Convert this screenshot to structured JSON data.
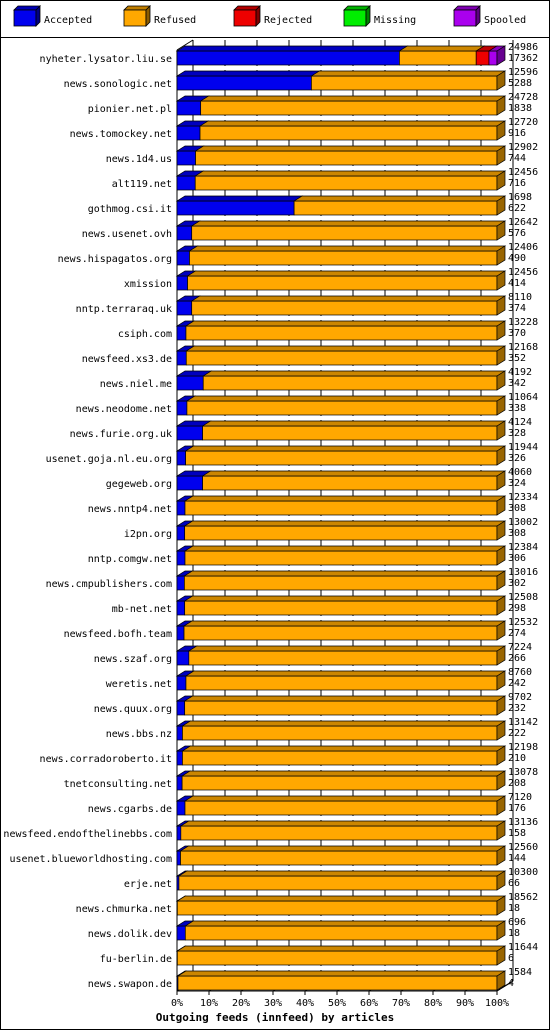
{
  "colors": {
    "accepted": "#0000ee",
    "refused": "#ffa800",
    "rejected": "#ee0000",
    "missing": "#00ee00",
    "spooled": "#aa00ee",
    "outline": "#000000"
  },
  "chart_data": {
    "type": "bar",
    "orientation": "horizontal",
    "stacked": true,
    "xlabel": "Outgoing feeds (innfeed) by articles",
    "ticks": [
      "0%",
      "10%",
      "20%",
      "30%",
      "40%",
      "50%",
      "60%",
      "70%",
      "80%",
      "90%",
      "100%"
    ],
    "xlim": [
      0,
      100
    ],
    "grid": true,
    "legend": [
      {
        "key": "accepted",
        "label": "Accepted"
      },
      {
        "key": "refused",
        "label": "Refused"
      },
      {
        "key": "rejected",
        "label": "Rejected"
      },
      {
        "key": "missing",
        "label": "Missing"
      },
      {
        "key": "spooled",
        "label": "Spooled"
      }
    ],
    "legend_position": "top",
    "rows": [
      {
        "name": "nyheter.lysator.liu.se",
        "total": "24986",
        "second": "17362",
        "accepted": 69.5,
        "refused": 24.0,
        "rejected": 4.0,
        "missing": 0,
        "spooled": 2.5
      },
      {
        "name": "news.sonologic.net",
        "total": "12596",
        "second": "5288",
        "accepted": 42.0,
        "refused": 58.0,
        "rejected": 0,
        "missing": 0,
        "spooled": 0
      },
      {
        "name": "pionier.net.pl",
        "total": "24728",
        "second": "1838",
        "accepted": 7.4,
        "refused": 92.6,
        "rejected": 0,
        "missing": 0,
        "spooled": 0
      },
      {
        "name": "news.tomockey.net",
        "total": "12720",
        "second": "916",
        "accepted": 7.2,
        "refused": 92.8,
        "rejected": 0,
        "missing": 0,
        "spooled": 0
      },
      {
        "name": "news.1d4.us",
        "total": "12902",
        "second": "744",
        "accepted": 5.8,
        "refused": 94.2,
        "rejected": 0,
        "missing": 0,
        "spooled": 0
      },
      {
        "name": "alt119.net",
        "total": "12456",
        "second": "716",
        "accepted": 5.7,
        "refused": 94.3,
        "rejected": 0,
        "missing": 0,
        "spooled": 0
      },
      {
        "name": "gothmog.csi.it",
        "total": "1698",
        "second": "622",
        "accepted": 36.6,
        "refused": 63.4,
        "rejected": 0,
        "missing": 0,
        "spooled": 0
      },
      {
        "name": "news.usenet.ovh",
        "total": "12642",
        "second": "576",
        "accepted": 4.6,
        "refused": 95.4,
        "rejected": 0,
        "missing": 0,
        "spooled": 0
      },
      {
        "name": "news.hispagatos.org",
        "total": "12406",
        "second": "490",
        "accepted": 3.9,
        "refused": 96.1,
        "rejected": 0,
        "missing": 0,
        "spooled": 0
      },
      {
        "name": "xmission",
        "total": "12456",
        "second": "414",
        "accepted": 3.3,
        "refused": 96.7,
        "rejected": 0,
        "missing": 0,
        "spooled": 0
      },
      {
        "name": "nntp.terraraq.uk",
        "total": "8110",
        "second": "374",
        "accepted": 4.6,
        "refused": 95.4,
        "rejected": 0,
        "missing": 0,
        "spooled": 0
      },
      {
        "name": "csiph.com",
        "total": "13228",
        "second": "370",
        "accepted": 2.8,
        "refused": 97.2,
        "rejected": 0,
        "missing": 0,
        "spooled": 0
      },
      {
        "name": "newsfeed.xs3.de",
        "total": "12168",
        "second": "352",
        "accepted": 2.9,
        "refused": 97.1,
        "rejected": 0,
        "missing": 0,
        "spooled": 0
      },
      {
        "name": "news.niel.me",
        "total": "4192",
        "second": "342",
        "accepted": 8.2,
        "refused": 91.8,
        "rejected": 0,
        "missing": 0,
        "spooled": 0
      },
      {
        "name": "news.neodome.net",
        "total": "11064",
        "second": "338",
        "accepted": 3.1,
        "refused": 96.9,
        "rejected": 0,
        "missing": 0,
        "spooled": 0
      },
      {
        "name": "news.furie.org.uk",
        "total": "4124",
        "second": "328",
        "accepted": 8.0,
        "refused": 92.0,
        "rejected": 0,
        "missing": 0,
        "spooled": 0
      },
      {
        "name": "usenet.goja.nl.eu.org",
        "total": "11944",
        "second": "326",
        "accepted": 2.7,
        "refused": 97.3,
        "rejected": 0,
        "missing": 0,
        "spooled": 0
      },
      {
        "name": "gegeweb.org",
        "total": "4060",
        "second": "324",
        "accepted": 8.0,
        "refused": 92.0,
        "rejected": 0,
        "missing": 0,
        "spooled": 0
      },
      {
        "name": "news.nntp4.net",
        "total": "12334",
        "second": "308",
        "accepted": 2.5,
        "refused": 97.5,
        "rejected": 0,
        "missing": 0,
        "spooled": 0
      },
      {
        "name": "i2pn.org",
        "total": "13002",
        "second": "308",
        "accepted": 2.4,
        "refused": 97.6,
        "rejected": 0,
        "missing": 0,
        "spooled": 0
      },
      {
        "name": "nntp.comgw.net",
        "total": "12384",
        "second": "306",
        "accepted": 2.5,
        "refused": 97.5,
        "rejected": 0,
        "missing": 0,
        "spooled": 0
      },
      {
        "name": "news.cmpublishers.com",
        "total": "13016",
        "second": "302",
        "accepted": 2.3,
        "refused": 97.7,
        "rejected": 0,
        "missing": 0,
        "spooled": 0
      },
      {
        "name": "mb-net.net",
        "total": "12508",
        "second": "298",
        "accepted": 2.4,
        "refused": 97.6,
        "rejected": 0,
        "missing": 0,
        "spooled": 0
      },
      {
        "name": "newsfeed.bofh.team",
        "total": "12532",
        "second": "274",
        "accepted": 2.2,
        "refused": 97.8,
        "rejected": 0,
        "missing": 0,
        "spooled": 0
      },
      {
        "name": "news.szaf.org",
        "total": "7224",
        "second": "266",
        "accepted": 3.7,
        "refused": 96.3,
        "rejected": 0,
        "missing": 0,
        "spooled": 0
      },
      {
        "name": "weretis.net",
        "total": "8760",
        "second": "242",
        "accepted": 2.8,
        "refused": 97.2,
        "rejected": 0,
        "missing": 0,
        "spooled": 0
      },
      {
        "name": "news.quux.org",
        "total": "9702",
        "second": "232",
        "accepted": 2.4,
        "refused": 97.6,
        "rejected": 0,
        "missing": 0,
        "spooled": 0
      },
      {
        "name": "news.bbs.nz",
        "total": "13142",
        "second": "222",
        "accepted": 1.7,
        "refused": 98.3,
        "rejected": 0,
        "missing": 0,
        "spooled": 0
      },
      {
        "name": "news.corradoroberto.it",
        "total": "12198",
        "second": "210",
        "accepted": 1.7,
        "refused": 98.3,
        "rejected": 0,
        "missing": 0,
        "spooled": 0
      },
      {
        "name": "tnetconsulting.net",
        "total": "13078",
        "second": "208",
        "accepted": 1.6,
        "refused": 98.4,
        "rejected": 0,
        "missing": 0,
        "spooled": 0
      },
      {
        "name": "news.cgarbs.de",
        "total": "7120",
        "second": "176",
        "accepted": 2.5,
        "refused": 97.5,
        "rejected": 0,
        "missing": 0,
        "spooled": 0
      },
      {
        "name": "newsfeed.endofthelinebbs.com",
        "total": "13136",
        "second": "158",
        "accepted": 1.2,
        "refused": 98.8,
        "rejected": 0,
        "missing": 0,
        "spooled": 0
      },
      {
        "name": "usenet.blueworldhosting.com",
        "total": "12560",
        "second": "144",
        "accepted": 1.1,
        "refused": 98.9,
        "rejected": 0,
        "missing": 0,
        "spooled": 0
      },
      {
        "name": "erje.net",
        "total": "10300",
        "second": "66",
        "accepted": 0.6,
        "refused": 99.4,
        "rejected": 0,
        "missing": 0,
        "spooled": 0
      },
      {
        "name": "news.chmurka.net",
        "total": "18562",
        "second": "18",
        "accepted": 0.1,
        "refused": 99.9,
        "rejected": 0,
        "missing": 0,
        "spooled": 0
      },
      {
        "name": "news.dolik.dev",
        "total": "696",
        "second": "18",
        "accepted": 2.6,
        "refused": 97.4,
        "rejected": 0,
        "missing": 0,
        "spooled": 0
      },
      {
        "name": "fu-berlin.de",
        "total": "11644",
        "second": "6",
        "accepted": 0.1,
        "refused": 99.9,
        "rejected": 0,
        "missing": 0,
        "spooled": 0
      },
      {
        "name": "news.swapon.de",
        "total": "1584",
        "second": "4",
        "accepted": 0.3,
        "refused": 99.7,
        "rejected": 0,
        "missing": 0,
        "spooled": 0
      }
    ]
  }
}
